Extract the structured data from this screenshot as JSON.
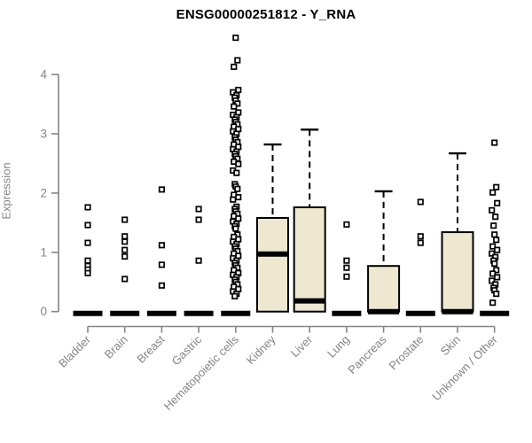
{
  "chart_data": {
    "type": "box",
    "title": "ENSG00000251812 - Y_RNA",
    "ylabel": "Expression",
    "xlabel": "",
    "ylim": [
      0,
      4.7
    ],
    "yticks": [
      0,
      1,
      2,
      3,
      4
    ],
    "grid": false,
    "legend": "none",
    "categories": [
      "Bladder",
      "Brain",
      "Breast",
      "Gastric",
      "Hematopoietic cells",
      "Kidney",
      "Liver",
      "Lung",
      "Pancreas",
      "Prostate",
      "Skin",
      "Unknown / Other"
    ],
    "series": [
      {
        "category": "Bladder",
        "q1": 0,
        "median": 0,
        "q3": 0,
        "whisker_low": 0,
        "whisker_high": 0,
        "outliers": [
          1.76,
          1.46,
          1.16,
          0.86,
          0.77,
          0.71,
          0.65
        ]
      },
      {
        "category": "Brain",
        "q1": 0,
        "median": 0,
        "q3": 0,
        "whisker_low": 0,
        "whisker_high": 0,
        "outliers": [
          1.55,
          1.27,
          1.18,
          1.04,
          0.93,
          0.55
        ]
      },
      {
        "category": "Breast",
        "q1": 0,
        "median": 0,
        "q3": 0,
        "whisker_low": 0,
        "whisker_high": 0,
        "outliers": [
          2.06,
          1.12,
          0.79,
          0.44
        ]
      },
      {
        "category": "Gastric",
        "q1": 0,
        "median": 0,
        "q3": 0,
        "whisker_low": 0,
        "whisker_high": 0,
        "outliers": [
          1.73,
          1.55,
          0.86
        ]
      },
      {
        "category": "Hematopoietic cells",
        "q1": 0,
        "median": 0,
        "q3": 0,
        "whisker_low": 0,
        "whisker_high": 0,
        "outliers": [
          4.62,
          4.24,
          4.13,
          3.74,
          3.7,
          3.65,
          3.61,
          3.56,
          3.51,
          3.46,
          3.36,
          3.32,
          3.28,
          3.24,
          3.2,
          3.16,
          3.12,
          3.08,
          3.04,
          3.0,
          2.94,
          2.9,
          2.86,
          2.82,
          2.78,
          2.74,
          2.7,
          2.66,
          2.62,
          2.58,
          2.53,
          2.49,
          2.38,
          2.34,
          2.15,
          2.11,
          2.07,
          1.97,
          1.93,
          1.89,
          1.77,
          1.73,
          1.69,
          1.65,
          1.61,
          1.57,
          1.52,
          1.48,
          1.44,
          1.4,
          1.3,
          1.26,
          1.22,
          1.18,
          1.14,
          1.1,
          1.06,
          1.02,
          0.98,
          0.94,
          0.9,
          0.86,
          0.82,
          0.78,
          0.74,
          0.7,
          0.65,
          0.62,
          0.58,
          0.54,
          0.5,
          0.46,
          0.42,
          0.38,
          0.34,
          0.3,
          0.26
        ]
      },
      {
        "category": "Kidney",
        "q1": 0,
        "median": 0.97,
        "q3": 1.58,
        "whisker_low": 0,
        "whisker_high": 2.82,
        "outliers": []
      },
      {
        "category": "Liver",
        "q1": 0,
        "median": 0.18,
        "q3": 1.76,
        "whisker_low": 0,
        "whisker_high": 3.07,
        "outliers": []
      },
      {
        "category": "Lung",
        "q1": 0,
        "median": 0,
        "q3": 0,
        "whisker_low": 0,
        "whisker_high": 0,
        "outliers": [
          1.47,
          0.86,
          0.74,
          0.59
        ]
      },
      {
        "category": "Pancreas",
        "q1": 0,
        "median": 0,
        "q3": 0.77,
        "whisker_low": 0,
        "whisker_high": 2.03,
        "outliers": []
      },
      {
        "category": "Prostate",
        "q1": 0,
        "median": 0,
        "q3": 0,
        "whisker_low": 0,
        "whisker_high": 0,
        "outliers": [
          1.85,
          1.27,
          1.16
        ]
      },
      {
        "category": "Skin",
        "q1": 0,
        "median": 0,
        "q3": 1.34,
        "whisker_low": 0,
        "whisker_high": 2.67,
        "outliers": []
      },
      {
        "category": "Unknown / Other",
        "q1": 0,
        "median": 0,
        "q3": 0,
        "whisker_low": 0,
        "whisker_high": 0,
        "outliers": [
          2.85,
          2.1,
          2.01,
          1.83,
          1.71,
          1.6,
          1.45,
          1.3,
          1.21,
          1.1,
          1.04,
          0.98,
          0.92,
          0.86,
          0.81,
          0.7,
          0.64,
          0.58,
          0.52,
          0.46,
          0.4,
          0.36,
          0.3,
          0.15
        ]
      }
    ],
    "colors": {
      "box_fill": "#EDE8CF",
      "box_stroke": "#000000",
      "median": "#000000",
      "outlier_stroke": "#000000",
      "outlier_fill": "#ffffff",
      "axis": "#848484",
      "tick_label": "#848484",
      "title": "#000000",
      "background": "#ffffff"
    }
  }
}
